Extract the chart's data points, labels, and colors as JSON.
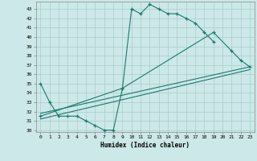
{
  "xlabel": "Humidex (Indice chaleur)",
  "bg_color": "#cce8e8",
  "grid_color": "#aacccc",
  "line_color": "#1a7a6e",
  "xlim": [
    -0.5,
    23.5
  ],
  "ylim": [
    29.8,
    43.8
  ],
  "xticks": [
    0,
    1,
    2,
    3,
    4,
    5,
    6,
    7,
    8,
    9,
    10,
    11,
    12,
    13,
    14,
    15,
    16,
    17,
    18,
    19,
    20,
    21,
    22,
    23
  ],
  "yticks": [
    30,
    31,
    32,
    33,
    34,
    35,
    36,
    37,
    38,
    39,
    40,
    41,
    42,
    43
  ],
  "line1_x": [
    0,
    1,
    2,
    3,
    4,
    5,
    6,
    7,
    8,
    9,
    10,
    11,
    12,
    13,
    14,
    15,
    16,
    17,
    18,
    19
  ],
  "line1_y": [
    35.0,
    33.0,
    31.5,
    31.5,
    31.5,
    31.0,
    30.5,
    30.0,
    30.0,
    34.5,
    43.0,
    42.5,
    43.5,
    43.0,
    42.5,
    42.5,
    42.0,
    41.5,
    40.5,
    39.5
  ],
  "line2_x": [
    0,
    23
  ],
  "line2_y": [
    31.2,
    36.5
  ],
  "line3_x": [
    0,
    23
  ],
  "line3_y": [
    31.8,
    36.8
  ],
  "line4_x": [
    0,
    9,
    19,
    21,
    22,
    23
  ],
  "line4_y": [
    31.5,
    34.5,
    40.5,
    38.5,
    37.5,
    36.8
  ]
}
